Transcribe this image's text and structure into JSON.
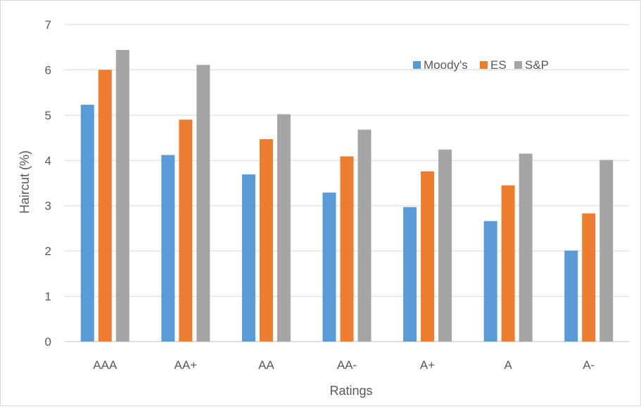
{
  "chart_data": {
    "type": "bar",
    "title": "",
    "xlabel": "Ratings",
    "ylabel": "Haircut (%)",
    "ylim": [
      0,
      7
    ],
    "yticks": [
      0,
      1,
      2,
      3,
      4,
      5,
      6,
      7
    ],
    "grid": true,
    "legend_position": "top-right",
    "categories": [
      "AAA",
      "AA+",
      "AA",
      "AA-",
      "A+",
      "A",
      "A-"
    ],
    "series": [
      {
        "name": "Moody's",
        "color": "#5b9bd5",
        "values": [
          5.23,
          4.12,
          3.69,
          3.29,
          2.97,
          2.66,
          2.01
        ]
      },
      {
        "name": "ES",
        "color": "#ed7d31",
        "values": [
          6.0,
          4.9,
          4.47,
          4.09,
          3.76,
          3.45,
          2.83
        ]
      },
      {
        "name": "S&P",
        "color": "#a5a5a5",
        "values": [
          6.44,
          6.11,
          5.02,
          4.68,
          4.24,
          4.15,
          4.01
        ]
      }
    ]
  }
}
